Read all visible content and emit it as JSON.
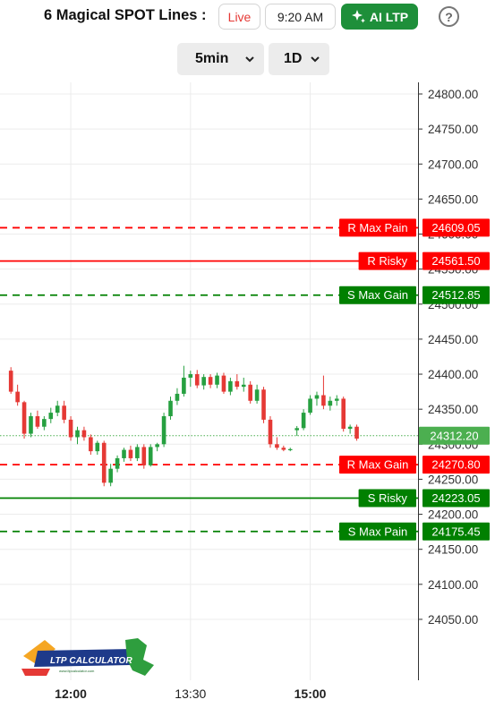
{
  "header": {
    "title": "6 Magical SPOT Lines :",
    "live_label": "Live",
    "time_label": "9:20 AM",
    "ai_label": "AI LTP",
    "help_label": "?"
  },
  "controls": {
    "interval": "5min",
    "range": "1D"
  },
  "colors": {
    "up": "#26a040",
    "down": "#e53935",
    "resistance": "#ff0000",
    "support": "#008000",
    "spot": "#4caf50"
  },
  "logo": {
    "text": "LTP CALCULATOR",
    "tagline": "www.ltpcalculator.com"
  },
  "chart_data": {
    "type": "candlestick",
    "ylim": [
      24000,
      24820
    ],
    "y_ticks": [
      24800,
      24750,
      24700,
      24650,
      24600,
      24550,
      24500,
      24450,
      24400,
      24350,
      24300,
      24250,
      24200,
      24150,
      24100,
      24050
    ],
    "y_tick_labels": [
      "24800.00",
      "24750.00",
      "24700.00",
      "24650.00",
      "24600.00",
      "24550.00",
      "24500.00",
      "24450.00",
      "24400.00",
      "24350.00",
      "24300.00",
      "24250.00",
      "24200.00",
      "24150.00",
      "24100.00",
      "24050.00"
    ],
    "x_labels": [
      {
        "label": "12:00",
        "index": 9,
        "bold": true
      },
      {
        "label": "13:30",
        "index": 27,
        "bold": false
      },
      {
        "label": "15:00",
        "index": 45,
        "bold": true
      }
    ],
    "levels": [
      {
        "name": "R Max Pain",
        "value": "24609.05",
        "price": 24609.05,
        "kind": "resistance",
        "style": "dashed"
      },
      {
        "name": "R Risky",
        "value": "24561.50",
        "price": 24561.5,
        "kind": "resistance",
        "style": "solid"
      },
      {
        "name": "S Max Gain",
        "value": "24512.85",
        "price": 24512.85,
        "kind": "support",
        "style": "dashed"
      },
      {
        "name": "R Max Gain",
        "value": "24270.80",
        "price": 24270.8,
        "kind": "resistance",
        "style": "dashed"
      },
      {
        "name": "S Risky",
        "value": "24223.05",
        "price": 24223.05,
        "kind": "support",
        "style": "solid"
      },
      {
        "name": "S Max Pain",
        "value": "24175.45",
        "price": 24175.45,
        "kind": "support",
        "style": "dashed"
      }
    ],
    "last_price": {
      "value": "24312.20",
      "price": 24312.2
    },
    "candles": [
      [
        24405,
        24410,
        24372,
        24375
      ],
      [
        24375,
        24385,
        24355,
        24360
      ],
      [
        24360,
        24362,
        24308,
        24315
      ],
      [
        24315,
        24345,
        24310,
        24340
      ],
      [
        24340,
        24348,
        24322,
        24325
      ],
      [
        24325,
        24340,
        24320,
        24336
      ],
      [
        24336,
        24352,
        24330,
        24345
      ],
      [
        24345,
        24362,
        24340,
        24355
      ],
      [
        24355,
        24362,
        24330,
        24335
      ],
      [
        24335,
        24340,
        24305,
        24310
      ],
      [
        24310,
        24325,
        24300,
        24320
      ],
      [
        24320,
        24325,
        24305,
        24310
      ],
      [
        24310,
        24314,
        24285,
        24290
      ],
      [
        24290,
        24305,
        24285,
        24302
      ],
      [
        24302,
        24305,
        24240,
        24245
      ],
      [
        24245,
        24272,
        24240,
        24265
      ],
      [
        24265,
        24284,
        24260,
        24280
      ],
      [
        24280,
        24295,
        24275,
        24292
      ],
      [
        24292,
        24298,
        24276,
        24280
      ],
      [
        24280,
        24300,
        24276,
        24296
      ],
      [
        24296,
        24300,
        24265,
        24270
      ],
      [
        24270,
        24300,
        24268,
        24296
      ],
      [
        24296,
        24302,
        24290,
        24300
      ],
      [
        24300,
        24345,
        24296,
        24340
      ],
      [
        24340,
        24368,
        24335,
        24362
      ],
      [
        24362,
        24380,
        24356,
        24372
      ],
      [
        24372,
        24412,
        24368,
        24395
      ],
      [
        24395,
        24405,
        24382,
        24400
      ],
      [
        24400,
        24406,
        24380,
        24384
      ],
      [
        24384,
        24400,
        24378,
        24396
      ],
      [
        24396,
        24400,
        24380,
        24385
      ],
      [
        24385,
        24402,
        24380,
        24398
      ],
      [
        24398,
        24402,
        24372,
        24375
      ],
      [
        24375,
        24395,
        24370,
        24390
      ],
      [
        24390,
        24400,
        24378,
        24382
      ],
      [
        24382,
        24395,
        24375,
        24385
      ],
      [
        24385,
        24390,
        24358,
        24362
      ],
      [
        24362,
        24385,
        24358,
        24378
      ],
      [
        24378,
        24382,
        24330,
        24335
      ],
      [
        24335,
        24340,
        24295,
        24300
      ],
      [
        24300,
        24310,
        24292,
        24295
      ],
      [
        24295,
        24298,
        24290,
        24292
      ],
      [
        24292,
        24295,
        24290,
        24293
      ],
      [
        24320,
        24326,
        24312,
        24323
      ],
      [
        24323,
        24350,
        24320,
        24345
      ],
      [
        24345,
        24370,
        24342,
        24365
      ],
      [
        24365,
        24375,
        24355,
        24370
      ],
      [
        24370,
        24398,
        24350,
        24355
      ],
      [
        24355,
        24368,
        24348,
        24362
      ],
      [
        24362,
        24370,
        24355,
        24365
      ],
      [
        24365,
        24368,
        24318,
        24322
      ],
      [
        24322,
        24328,
        24315,
        24325
      ],
      [
        24325,
        24328,
        24305,
        24308
      ]
    ]
  }
}
